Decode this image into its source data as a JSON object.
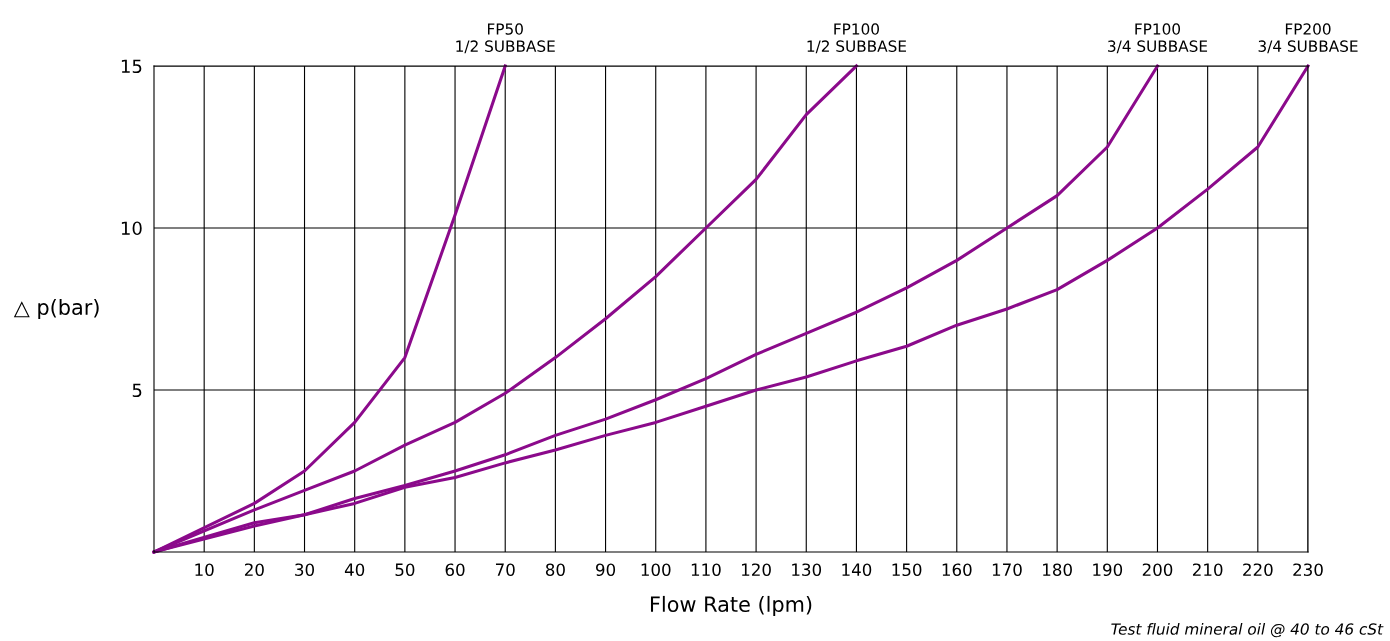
{
  "chart_data": {
    "type": "line",
    "xlabel": "Flow Rate (lpm)",
    "ylabel": "△ p(bar)",
    "xlim": [
      0,
      230
    ],
    "xticks": [
      10,
      20,
      30,
      40,
      50,
      60,
      70,
      80,
      90,
      100,
      110,
      120,
      130,
      140,
      150,
      160,
      170,
      180,
      190,
      200,
      210,
      220,
      230
    ],
    "ylim": [
      0,
      15
    ],
    "yticks": [
      5,
      10,
      15
    ],
    "grid": true,
    "marker": "none",
    "line_style": "solid",
    "legend": false,
    "annotations": [
      "Test fluid mineral oil @ 40 to 46 cSt"
    ],
    "series": [
      {
        "name": "FP50\n1/2 SUBBASE",
        "color": "#8b0a8b",
        "x": [
          0,
          20,
          30,
          40,
          50,
          60,
          70
        ],
        "values": [
          0,
          1.5,
          2.5,
          4.0,
          6.0,
          10.4,
          15
        ]
      },
      {
        "name": "FP100\n1/2 SUBBASE",
        "color": "#8b0a8b",
        "x": [
          0,
          20,
          30,
          40,
          50,
          60,
          70,
          80,
          90,
          100,
          110,
          120,
          130,
          140
        ],
        "values": [
          0,
          1.3,
          1.9,
          2.5,
          3.3,
          4.0,
          4.9,
          6.0,
          7.2,
          8.5,
          10.0,
          11.5,
          13.5,
          15
        ]
      },
      {
        "name": "FP100\n3/4 SUBBASE",
        "color": "#8b0a8b",
        "x": [
          0,
          20,
          30,
          40,
          50,
          60,
          70,
          80,
          90,
          100,
          110,
          120,
          130,
          140,
          150,
          160,
          170,
          180,
          190,
          200
        ],
        "values": [
          0,
          0.9,
          1.15,
          1.65,
          2.05,
          2.5,
          3.0,
          3.6,
          4.1,
          4.7,
          5.35,
          6.1,
          6.75,
          7.4,
          8.15,
          9.0,
          10.0,
          11.0,
          12.5,
          15
        ]
      },
      {
        "name": "FP200\n3/4 SUBBASE",
        "color": "#8b0a8b",
        "x": [
          0,
          20,
          30,
          40,
          50,
          60,
          70,
          80,
          90,
          100,
          110,
          120,
          130,
          140,
          150,
          160,
          170,
          180,
          190,
          200,
          210,
          220,
          230
        ],
        "values": [
          0,
          0.8,
          1.15,
          1.5,
          2.0,
          2.3,
          2.75,
          3.15,
          3.6,
          4.0,
          4.5,
          5.0,
          5.4,
          5.9,
          6.35,
          7.0,
          7.5,
          8.1,
          9.0,
          10.0,
          11.2,
          12.5,
          15
        ]
      }
    ]
  }
}
